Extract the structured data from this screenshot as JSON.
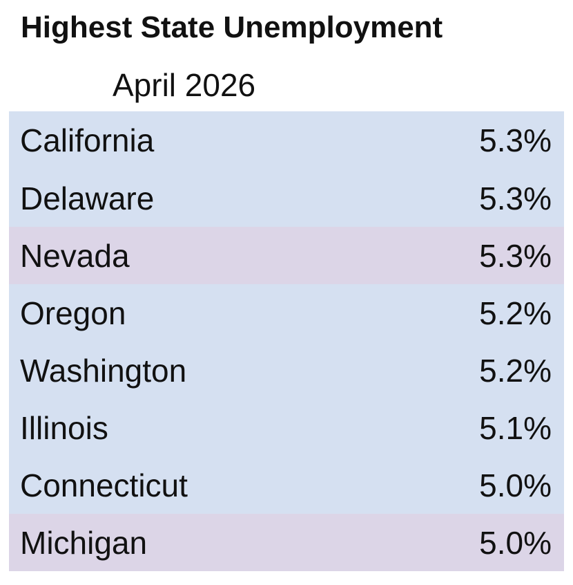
{
  "chart_data": {
    "type": "table",
    "title": "Highest State Unemployment",
    "subtitle": "April 2026",
    "rows": [
      {
        "state": "California",
        "rate": "5.3%",
        "value": 5.3,
        "highlighted": false
      },
      {
        "state": "Delaware",
        "rate": "5.3%",
        "value": 5.3,
        "highlighted": false
      },
      {
        "state": "Nevada",
        "rate": "5.3%",
        "value": 5.3,
        "highlighted": true
      },
      {
        "state": "Oregon",
        "rate": "5.2%",
        "value": 5.2,
        "highlighted": false
      },
      {
        "state": "Washington",
        "rate": "5.2%",
        "value": 5.2,
        "highlighted": false
      },
      {
        "state": "Illinois",
        "rate": "5.1%",
        "value": 5.1,
        "highlighted": false
      },
      {
        "state": "Connecticut",
        "rate": "5.0%",
        "value": 5.0,
        "highlighted": false
      },
      {
        "state": "Michigan",
        "rate": "5.0%",
        "value": 5.0,
        "highlighted": true
      }
    ],
    "colors": {
      "row_background": "#d5e0f1",
      "highlight_background": "#dcd5e7"
    }
  }
}
